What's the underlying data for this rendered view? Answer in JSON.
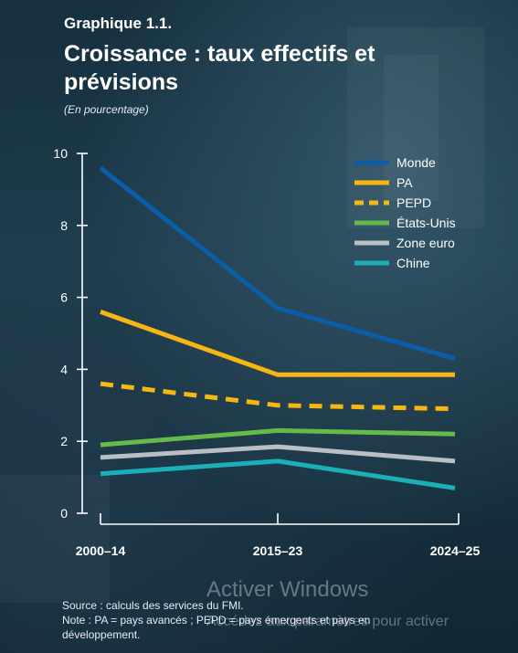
{
  "header": {
    "kicker": "Graphique 1.1.",
    "title": "Croissance : taux effectifs et prévisions",
    "subtitle": "(En pourcentage)"
  },
  "colors": {
    "monde": "#0b5da8",
    "pa": "#f6b712",
    "pepd": "#f6b712",
    "etats_unis": "#66b94a",
    "zone_euro": "#b9bfc3",
    "chine": "#1ab0b8"
  },
  "chart_data": {
    "type": "line",
    "categories": [
      "2000–14",
      "2015–23",
      "2024–25"
    ],
    "ylim": [
      0,
      10
    ],
    "yticks": [
      "0",
      "2",
      "4",
      "6",
      "8",
      "10"
    ],
    "grid": false,
    "legend_position": "top-right",
    "series": [
      {
        "name": "Monde",
        "values": [
          9.6,
          5.7,
          4.3
        ],
        "color": "#0b5da8",
        "dashed": false
      },
      {
        "name": "PA",
        "values": [
          5.6,
          3.85,
          3.85
        ],
        "color": "#f6b712",
        "dashed": false
      },
      {
        "name": "PEPD",
        "values": [
          3.6,
          3.0,
          2.9
        ],
        "color": "#f6b712",
        "dashed": true
      },
      {
        "name": "États-Unis",
        "values": [
          1.9,
          2.3,
          2.2
        ],
        "color": "#66b94a",
        "dashed": false
      },
      {
        "name": "Zone euro",
        "values": [
          1.55,
          1.85,
          1.45
        ],
        "color": "#b9bfc3",
        "dashed": false
      },
      {
        "name": "Chine",
        "values": [
          1.1,
          1.45,
          0.7
        ],
        "color": "#1ab0b8",
        "dashed": false
      }
    ]
  },
  "notes": {
    "source": "Source : calculs des services du FMI.",
    "note": "Note : PA = pays avancés ; PEPD = pays émergents et pays en développement."
  },
  "watermark": {
    "title": "Activer Windows",
    "subtitle": "Accédez aux paramètres pour activer"
  }
}
